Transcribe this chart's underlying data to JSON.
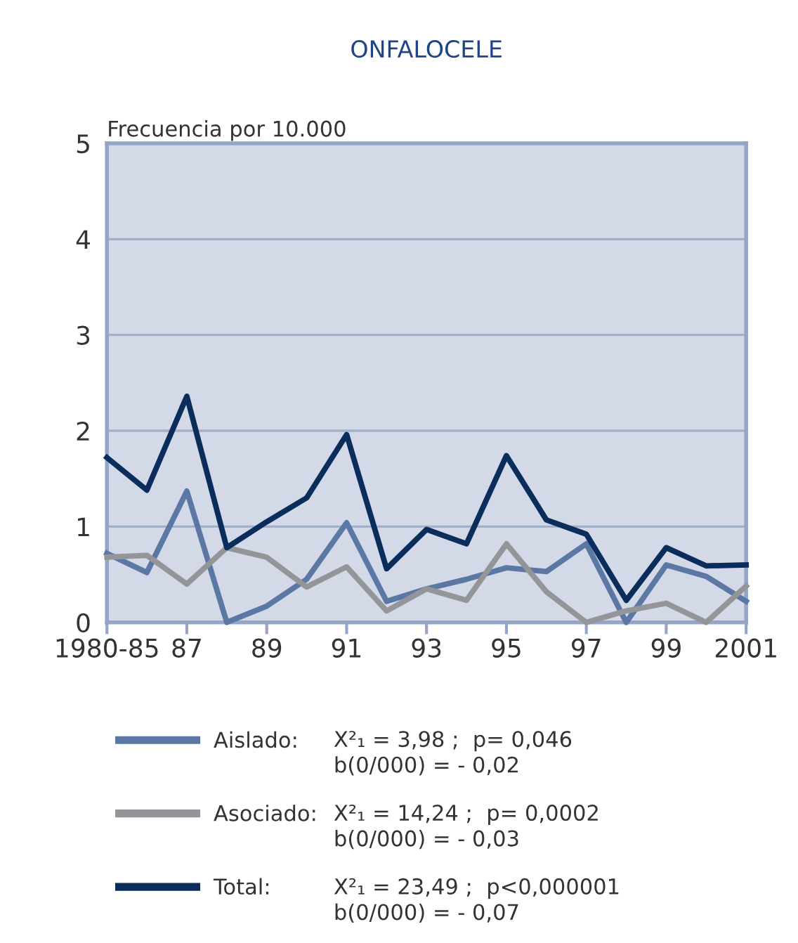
{
  "chart_data": {
    "type": "line",
    "title": "ONFALOCELE",
    "ylabel": "Frecuencia por 10.000",
    "categories": [
      "1980-85",
      null,
      "87",
      null,
      "89",
      null,
      "91",
      null,
      "93",
      null,
      "95",
      null,
      "97",
      null,
      "99",
      null,
      "2001"
    ],
    "series": [
      {
        "name": "Aislado:",
        "color": "#5b77a3",
        "values": [
          0.72,
          0.52,
          1.37,
          0,
          0.17,
          0.45,
          1.04,
          0.22,
          0.35,
          0.45,
          0.57,
          0.53,
          0.82,
          0,
          0.6,
          0.48,
          0.22
        ]
      },
      {
        "name": "Asociado:",
        "color": "#939598",
        "values": [
          0.68,
          0.7,
          0.4,
          0.78,
          0.68,
          0.37,
          0.58,
          0.12,
          0.35,
          0.23,
          0.82,
          0.32,
          0,
          0.12,
          0.2,
          0,
          0.38
        ]
      },
      {
        "name": "Total:",
        "color": "#0a2d5c",
        "values": [
          1.72,
          1.38,
          2.36,
          0.78,
          1.05,
          1.3,
          1.96,
          0.56,
          0.97,
          0.82,
          1.74,
          1.07,
          0.92,
          0.23,
          0.78,
          0.59,
          0.6
        ]
      }
    ],
    "ylim": [
      0,
      5
    ],
    "yticks": [
      0,
      1,
      2,
      3,
      4,
      5
    ],
    "grid": "y",
    "legend": "bottom",
    "marker": "none",
    "line_style": "solid",
    "annotations": [
      "X²₁ = 3,98 ;  p= 0,046\nb(0/000) = - 0,02",
      "X²₁ = 14,24 ;  p= 0,0002\nb(0/000) = - 0,03",
      "X²₁ = 23,49 ;  p<0,000001\nb(0/000) = - 0,07"
    ]
  }
}
